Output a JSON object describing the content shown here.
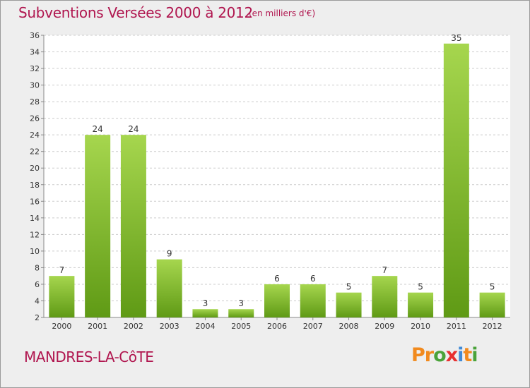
{
  "title": "Subventions Versées 2000 à 2012",
  "unit_note": "(en milliers d'€)",
  "place_name": "MANDRES-LA-CôTE",
  "logo": {
    "letters": [
      "P",
      "r",
      "o",
      "x",
      "i",
      "t",
      "i"
    ],
    "colors": [
      "#f18a1e",
      "#f18a1e",
      "#4aa33a",
      "#e8302f",
      "#3f8ad6",
      "#f18a1e",
      "#4aa33a"
    ]
  },
  "colors": {
    "title": "#b0164f",
    "bar_light": "#a6d64e",
    "bar_dark": "#5f9a15",
    "grid": "#cccccc",
    "plot_bg": "#ffffff"
  },
  "chart_data": {
    "type": "bar",
    "categories": [
      "2000",
      "2001",
      "2002",
      "2003",
      "2004",
      "2005",
      "2006",
      "2007",
      "2008",
      "2009",
      "2010",
      "2011",
      "2012"
    ],
    "values": [
      7,
      24,
      24,
      9,
      3,
      3,
      6,
      6,
      5,
      7,
      5,
      35,
      5
    ],
    "title": "Subventions Versées 2000 à 2012",
    "xlabel": "",
    "ylabel": "",
    "ylim": [
      2,
      36
    ],
    "yticks": [
      2,
      4,
      6,
      8,
      10,
      12,
      14,
      16,
      18,
      20,
      22,
      24,
      26,
      28,
      30,
      32,
      34,
      36
    ],
    "grid": true,
    "data_labels": true
  }
}
